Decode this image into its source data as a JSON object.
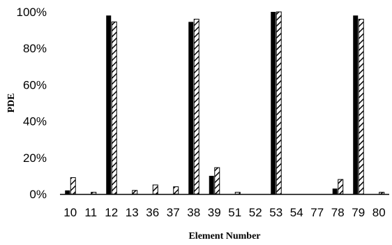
{
  "chart_data": {
    "type": "bar",
    "title": "",
    "xlabel": "Element Number",
    "ylabel": "PDE",
    "ylim": [
      0,
      1
    ],
    "y_tick_labels": [
      "0%",
      "20%",
      "40%",
      "60%",
      "80%",
      "100%"
    ],
    "grid": false,
    "legend": "none",
    "categories": [
      "10",
      "11",
      "12",
      "13",
      "36",
      "37",
      "38",
      "39",
      "51",
      "52",
      "53",
      "54",
      "77",
      "78",
      "79",
      "80"
    ],
    "series": [
      {
        "style": "solid",
        "color": "#000000",
        "values": [
          0.02,
          0.0,
          0.98,
          0.0,
          0.0,
          0.0,
          0.945,
          0.1,
          0.0,
          0.0,
          1.0,
          0.0,
          0.0,
          0.03,
          0.98,
          0.0
        ]
      },
      {
        "style": "hatched",
        "color": "#000000",
        "values": [
          0.09,
          0.01,
          0.945,
          0.02,
          0.05,
          0.04,
          0.96,
          0.145,
          0.01,
          0.0,
          1.0,
          0.0,
          0.0,
          0.08,
          0.96,
          0.01
        ]
      }
    ]
  }
}
